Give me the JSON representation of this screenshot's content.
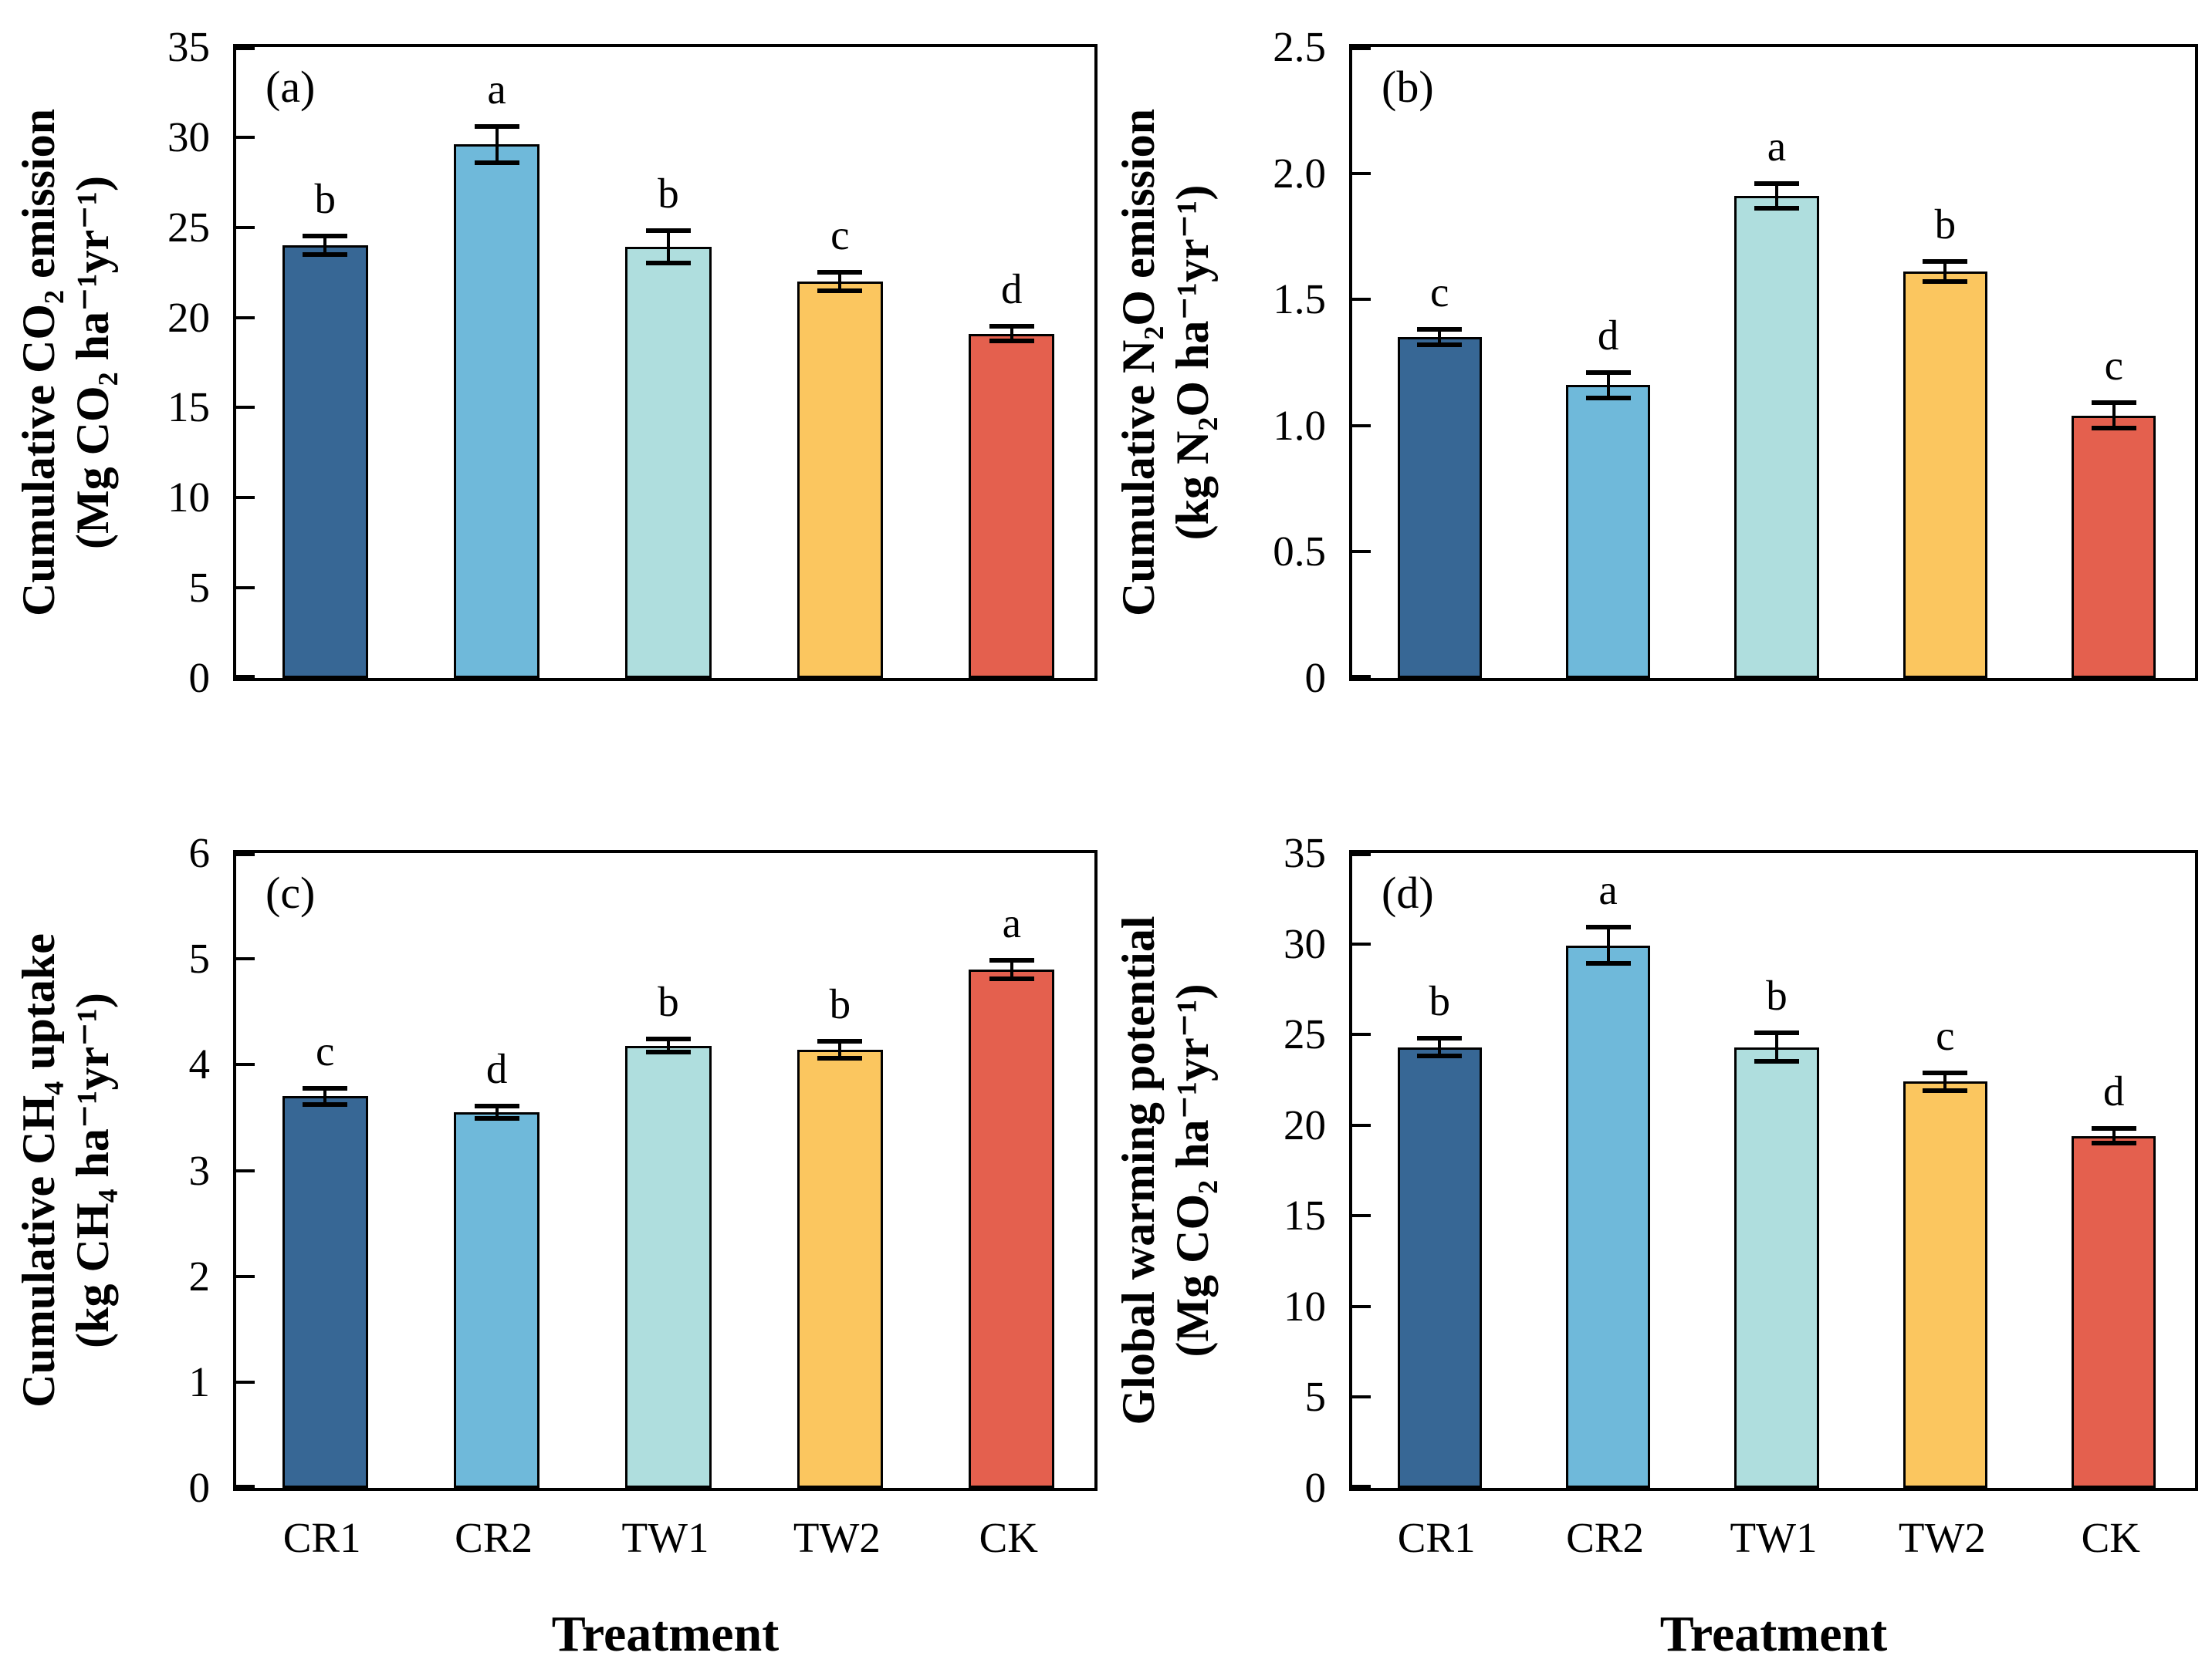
{
  "figure": {
    "x_axis_title": "Treatment",
    "categories": [
      "CR1",
      "CR2",
      "TW1",
      "TW2",
      "CK"
    ],
    "bar_colors": [
      "#376795",
      "#6FB9DA",
      "#AFDEDE",
      "#FBC65F",
      "#E4604E"
    ],
    "error_bar_color": "#000000",
    "frame_color": "#000000"
  },
  "chart_data": [
    {
      "type": "bar",
      "panel": "a",
      "tag": "(a)",
      "ylabel": [
        "Cumulative CO₂ emission",
        "(Mg CO₂ ha⁻¹yr⁻¹)"
      ],
      "xlabel": "",
      "ylim": [
        0,
        35
      ],
      "ytick_values": [
        0,
        5,
        10,
        15,
        20,
        25,
        30,
        35
      ],
      "ytick_labels": [
        "0",
        "5",
        "10",
        "15",
        "20",
        "25",
        "30",
        "35"
      ],
      "categories": [
        "CR1",
        "CR2",
        "TW1",
        "TW2",
        "CK"
      ],
      "values": [
        24.0,
        29.6,
        23.9,
        22.0,
        19.1
      ],
      "errors": [
        0.5,
        1.0,
        0.9,
        0.5,
        0.4
      ],
      "sig_letters": [
        "b",
        "a",
        "b",
        "c",
        "d"
      ],
      "grid": false,
      "legend": "none",
      "show_x_tick_labels": false
    },
    {
      "type": "bar",
      "panel": "b",
      "tag": "(b)",
      "ylabel": [
        "Cumulative N₂O emission",
        "(kg N₂O ha⁻¹yr⁻¹)"
      ],
      "xlabel": "",
      "ylim": [
        0,
        2.5
      ],
      "ytick_values": [
        0,
        0.5,
        1.0,
        1.5,
        2.0,
        2.5
      ],
      "ytick_labels": [
        "0",
        "0.5",
        "1.0",
        "1.5",
        "2.0",
        "2.5"
      ],
      "categories": [
        "CR1",
        "CR2",
        "TW1",
        "TW2",
        "CK"
      ],
      "values": [
        1.35,
        1.16,
        1.91,
        1.61,
        1.04
      ],
      "errors": [
        0.03,
        0.05,
        0.05,
        0.04,
        0.05
      ],
      "sig_letters": [
        "c",
        "d",
        "a",
        "b",
        "c"
      ],
      "grid": false,
      "legend": "none",
      "show_x_tick_labels": false
    },
    {
      "type": "bar",
      "panel": "c",
      "tag": "(c)",
      "ylabel": [
        "Cumulative CH₄ uptake",
        "(kg CH₄ ha⁻¹yr⁻¹)"
      ],
      "xlabel": "Treatment",
      "ylim": [
        0,
        6
      ],
      "ytick_values": [
        0,
        1,
        2,
        3,
        4,
        5,
        6
      ],
      "ytick_labels": [
        "0",
        "1",
        "2",
        "3",
        "4",
        "5",
        "6"
      ],
      "categories": [
        "CR1",
        "CR2",
        "TW1",
        "TW2",
        "CK"
      ],
      "values": [
        3.7,
        3.55,
        4.18,
        4.14,
        4.9
      ],
      "errors": [
        0.08,
        0.06,
        0.06,
        0.08,
        0.09
      ],
      "sig_letters": [
        "c",
        "d",
        "b",
        "b",
        "a"
      ],
      "grid": false,
      "legend": "none",
      "show_x_tick_labels": true
    },
    {
      "type": "bar",
      "panel": "d",
      "tag": "(d)",
      "ylabel": [
        "Global warming potential",
        "(Mg CO₂ ha⁻¹yr⁻¹)"
      ],
      "xlabel": "Treatment",
      "ylim": [
        0,
        35
      ],
      "ytick_values": [
        0,
        5,
        10,
        15,
        20,
        25,
        30,
        35
      ],
      "ytick_labels": [
        "0",
        "5",
        "10",
        "15",
        "20",
        "25",
        "30",
        "35"
      ],
      "categories": [
        "CR1",
        "CR2",
        "TW1",
        "TW2",
        "CK"
      ],
      "values": [
        24.3,
        29.9,
        24.3,
        22.4,
        19.4
      ],
      "errors": [
        0.5,
        1.0,
        0.8,
        0.5,
        0.4
      ],
      "sig_letters": [
        "b",
        "a",
        "b",
        "c",
        "d"
      ],
      "grid": false,
      "legend": "none",
      "show_x_tick_labels": true
    }
  ]
}
